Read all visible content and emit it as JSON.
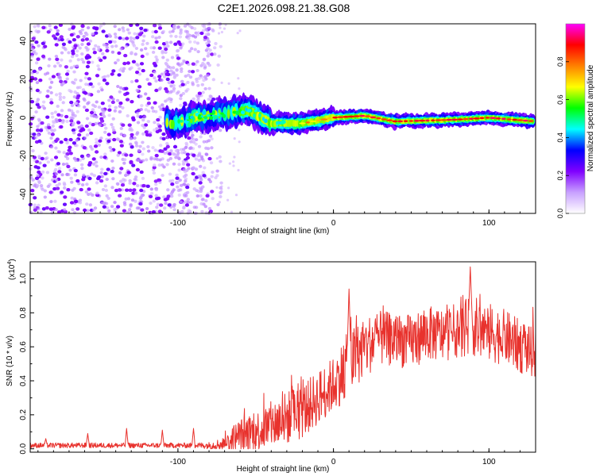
{
  "page_title": "C2E1.2026.098.21.38.G08",
  "chart_data": [
    {
      "type": "heatmap",
      "title": "C2E1.2026.098.21.38.G08",
      "xlabel": "Height of straight line (km)",
      "ylabel": "Frequency (Hz)",
      "xlim": [
        -195,
        130
      ],
      "ylim": [
        -50,
        49
      ],
      "xticks": [
        -100,
        0,
        100
      ],
      "xtick_labels": [
        "-100",
        "0",
        "100"
      ],
      "yticks": [
        -40,
        -20,
        0,
        20,
        40
      ],
      "ytick_labels": [
        "-40",
        "-20",
        "0",
        "20",
        "40"
      ],
      "colorbar": {
        "label": "Normalized spectral amplitude",
        "range": [
          0,
          1
        ],
        "ticks": [
          0,
          0.2,
          0.4,
          0.6,
          0.8
        ],
        "tick_labels": [
          "0.0",
          "0.2",
          "0.4",
          "0.6",
          "0.8"
        ],
        "colors": [
          "#ffffff",
          "#c8a0ff",
          "#8000ff",
          "#0000ff",
          "#00ffff",
          "#00ff00",
          "#ffff00",
          "#ff8000",
          "#ff0000",
          "#ff00ff"
        ]
      },
      "features": [
        {
          "name": "noise-region",
          "x_range": [
            -195,
            -78
          ],
          "freq_range": [
            -50,
            49
          ],
          "amplitude": "0.1-0.2"
        },
        {
          "name": "signal-trace",
          "points": [
            [
              -105,
              -4
            ],
            [
              -90,
              0
            ],
            [
              -70,
              2
            ],
            [
              -55,
              4
            ],
            [
              -40,
              -3
            ],
            [
              -20,
              -3
            ],
            [
              0,
              0
            ],
            [
              20,
              1
            ],
            [
              40,
              -2
            ],
            [
              80,
              -1
            ],
            [
              100,
              0
            ],
            [
              130,
              -2
            ]
          ]
        }
      ]
    },
    {
      "type": "line",
      "title": "",
      "xlabel": "Height of straight line (km)",
      "ylabel": "SNR (10 * v/v)",
      "y_scale_label_base": "(x10",
      "y_scale_label_exp": "4",
      "y_scale_label_close": ")",
      "xlim": [
        -195,
        130
      ],
      "ylim": [
        -0.02,
        1.1
      ],
      "xticks": [
        -100,
        0,
        100
      ],
      "xtick_labels": [
        "-100",
        "0",
        "100"
      ],
      "yticks": [
        0.0,
        0.2,
        0.4,
        0.6,
        0.8,
        1.0
      ],
      "ytick_labels": [
        "0.0",
        "0.2",
        "0.4",
        "0.6",
        "0.8",
        "1.0"
      ],
      "color": "#e8322d",
      "envelope": {
        "x": [
          -195,
          -170,
          -145,
          -125,
          -110,
          -95,
          -80,
          -70,
          -65,
          -60,
          -50,
          -40,
          -30,
          -20,
          -10,
          0,
          5,
          10,
          15,
          20,
          30,
          40,
          50,
          60,
          70,
          80,
          90,
          100,
          110,
          120,
          130
        ],
        "base": [
          0.02,
          0.02,
          0.02,
          0.02,
          0.02,
          0.02,
          0.02,
          0.03,
          0.05,
          0.08,
          0.1,
          0.14,
          0.18,
          0.22,
          0.3,
          0.38,
          0.44,
          0.5,
          0.55,
          0.6,
          0.65,
          0.64,
          0.63,
          0.68,
          0.67,
          0.7,
          0.72,
          0.68,
          0.66,
          0.6,
          0.56
        ],
        "amp": [
          0.015,
          0.015,
          0.015,
          0.015,
          0.015,
          0.015,
          0.02,
          0.04,
          0.09,
          0.1,
          0.12,
          0.14,
          0.16,
          0.16,
          0.16,
          0.16,
          0.18,
          0.2,
          0.18,
          0.18,
          0.16,
          0.16,
          0.16,
          0.16,
          0.16,
          0.16,
          0.18,
          0.18,
          0.16,
          0.16,
          0.14
        ]
      },
      "peaks": [
        {
          "x": -185,
          "y": 0.06
        },
        {
          "x": -158,
          "y": 0.09
        },
        {
          "x": -133,
          "y": 0.12
        },
        {
          "x": -110,
          "y": 0.11
        },
        {
          "x": -90,
          "y": 0.12
        },
        {
          "x": 10,
          "y": 0.94
        },
        {
          "x": 88,
          "y": 1.07
        }
      ]
    }
  ]
}
